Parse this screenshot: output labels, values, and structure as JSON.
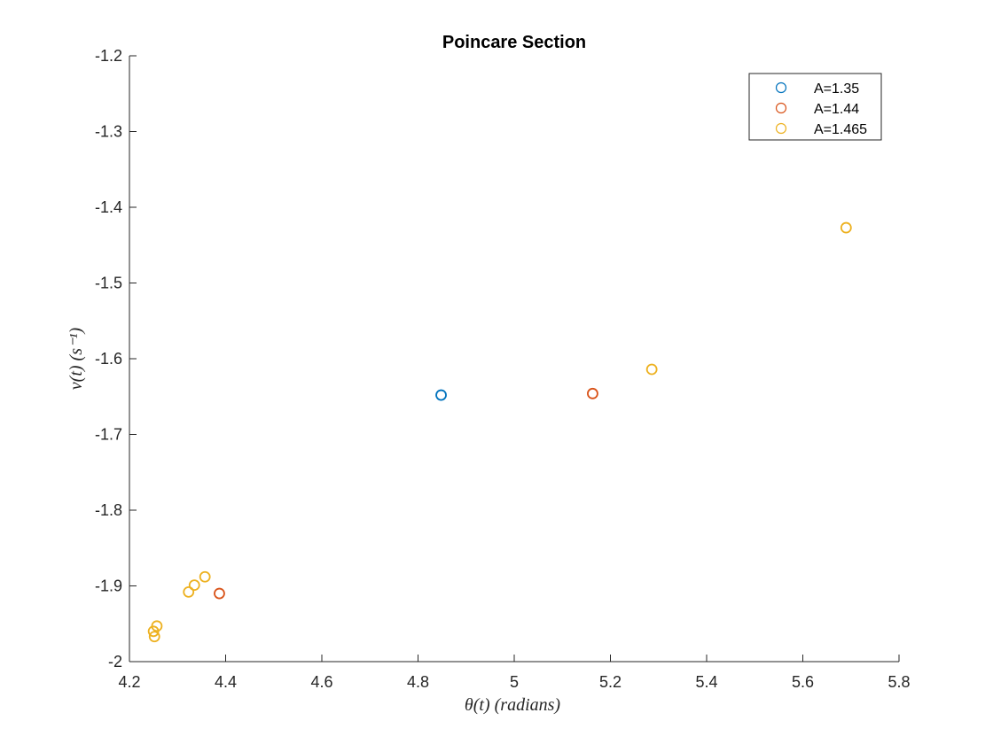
{
  "chart_data": {
    "type": "scatter",
    "title": "Poincare Section",
    "xlabel": "θ(t) (radians)",
    "ylabel": "v(t) (s⁻¹)",
    "xlim": [
      4.2,
      5.8
    ],
    "ylim": [
      -2,
      -1.2
    ],
    "xticks": [
      4.2,
      4.4,
      4.6,
      4.8,
      5,
      5.2,
      5.4,
      5.6,
      5.8
    ],
    "xtick_labels": [
      "4.2",
      "4.4",
      "4.6",
      "4.8",
      "5",
      "5.2",
      "5.4",
      "5.6",
      "5.8"
    ],
    "yticks": [
      -2,
      -1.9,
      -1.8,
      -1.7,
      -1.6,
      -1.5,
      -1.4,
      -1.3,
      -1.2
    ],
    "ytick_labels": [
      "-2",
      "-1.9",
      "-1.8",
      "-1.7",
      "-1.6",
      "-1.5",
      "-1.4",
      "-1.3",
      "-1.2"
    ],
    "grid": false,
    "legend_position": "top-right",
    "marker": "open-circle",
    "series": [
      {
        "name": "A=1.35",
        "color": "#0072BD",
        "points": [
          [
            4.848,
            -1.648
          ]
        ]
      },
      {
        "name": "A=1.44",
        "color": "#D95319",
        "points": [
          [
            5.163,
            -1.646
          ],
          [
            4.387,
            -1.91
          ]
        ]
      },
      {
        "name": "A=1.465",
        "color": "#EDB120",
        "points": [
          [
            5.69,
            -1.427
          ],
          [
            5.286,
            -1.614
          ],
          [
            4.357,
            -1.888
          ],
          [
            4.335,
            -1.899
          ],
          [
            4.323,
            -1.908
          ],
          [
            4.257,
            -1.953
          ],
          [
            4.25,
            -1.96
          ],
          [
            4.252,
            -1.967
          ]
        ]
      }
    ]
  }
}
